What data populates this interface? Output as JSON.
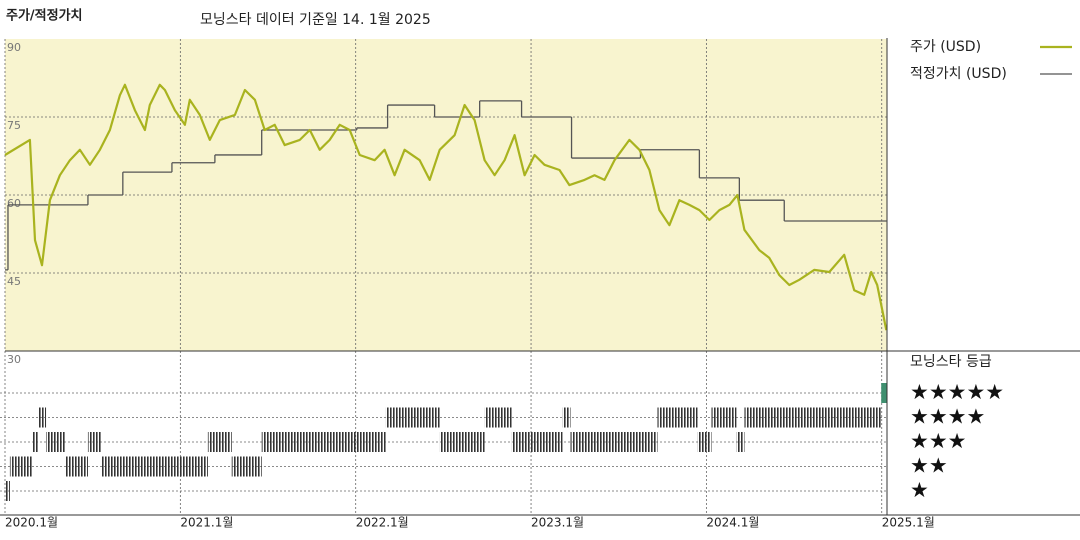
{
  "chart_data": {
    "type": "line",
    "title": "주가/적정가치",
    "subtitle": "모닝스타 데이터 기준일 14. 1월 2025",
    "xlim": [
      2020,
      2025.03
    ],
    "xticks": [
      {
        "value": 2020,
        "label": "2020.1월"
      },
      {
        "value": 2021,
        "label": "2021.1월"
      },
      {
        "value": 2022,
        "label": "2022.1월"
      },
      {
        "value": 2023,
        "label": "2023.1월"
      },
      {
        "value": 2024,
        "label": "2024.1월"
      },
      {
        "value": 2025,
        "label": "2025.1월"
      }
    ],
    "ylim": [
      30,
      90
    ],
    "yticks": [
      30,
      45,
      60,
      75,
      90
    ],
    "grid": true,
    "background": "#f8f4cf",
    "series": [
      {
        "name": "주가 (USD)",
        "color": "#a9b31f",
        "style": "line",
        "x": [
          2020.0,
          2020.142,
          2020.171,
          2020.211,
          2020.256,
          2020.313,
          2020.37,
          2020.427,
          2020.484,
          2020.541,
          2020.598,
          2020.655,
          2020.684,
          2020.741,
          2020.798,
          2020.826,
          2020.883,
          2020.912,
          2020.969,
          2021.026,
          2021.054,
          2021.111,
          2021.168,
          2021.225,
          2021.311,
          2021.368,
          2021.425,
          2021.481,
          2021.538,
          2021.595,
          2021.681,
          2021.738,
          2021.795,
          2021.852,
          2021.909,
          2021.966,
          2022.023,
          2022.108,
          2022.165,
          2022.222,
          2022.279,
          2022.365,
          2022.422,
          2022.479,
          2022.564,
          2022.621,
          2022.678,
          2022.735,
          2022.792,
          2022.849,
          2022.906,
          2022.963,
          2023.02,
          2023.077,
          2023.162,
          2023.219,
          2023.305,
          2023.362,
          2023.419,
          2023.476,
          2023.561,
          2023.618,
          2023.675,
          2023.732,
          2023.789,
          2023.846,
          2023.903,
          2023.96,
          2024.017,
          2024.074,
          2024.131,
          2024.177,
          2024.217,
          2024.302,
          2024.359,
          2024.416,
          2024.473,
          2024.53,
          2024.615,
          2024.701,
          2024.786,
          2024.843,
          2024.9,
          2024.94,
          2024.974,
          2025.009,
          2025.026
        ],
        "values": [
          67.7,
          70.6,
          51.3,
          46.5,
          59.0,
          63.8,
          66.7,
          68.7,
          65.8,
          68.7,
          72.5,
          79.2,
          81.2,
          76.3,
          72.5,
          77.3,
          81.2,
          80.2,
          76.3,
          73.5,
          78.3,
          75.4,
          70.6,
          74.4,
          75.4,
          80.2,
          78.3,
          72.5,
          73.5,
          69.6,
          70.6,
          72.5,
          68.7,
          70.6,
          73.5,
          72.5,
          67.7,
          66.7,
          68.7,
          63.8,
          68.7,
          66.7,
          62.9,
          68.7,
          71.5,
          77.3,
          74.4,
          66.7,
          63.8,
          66.7,
          71.5,
          63.8,
          67.7,
          65.8,
          64.8,
          61.9,
          62.9,
          63.8,
          62.9,
          66.7,
          70.6,
          68.7,
          64.8,
          57.1,
          54.2,
          59.0,
          58.1,
          57.1,
          55.2,
          57.1,
          58.1,
          60.0,
          53.3,
          49.4,
          47.9,
          44.6,
          42.7,
          43.7,
          45.6,
          45.2,
          48.5,
          41.7,
          40.8,
          45.2,
          42.7,
          36.9,
          34.0
        ]
      },
      {
        "name": "적정가치 (USD)",
        "color": "#555555",
        "style": "step",
        "x": [
          2020.0,
          2020.017,
          2020.473,
          2020.672,
          2020.952,
          2021.197,
          2021.464,
          2022.006,
          2022.182,
          2022.45,
          2022.707,
          2022.946,
          2023.231,
          2023.624,
          2023.96,
          2024.188,
          2024.444,
          2025.026
        ],
        "values": [
          45.6,
          58.1,
          60.0,
          64.4,
          66.2,
          67.7,
          72.5,
          72.9,
          77.3,
          75.0,
          78.1,
          75.0,
          67.1,
          68.7,
          63.3,
          59.0,
          55.0,
          55.0
        ]
      }
    ],
    "rating_title": "모닝스타 등급",
    "rating_labels": [
      "★★★★★",
      "★★★★",
      "★★★",
      "★★",
      "★"
    ],
    "rating_levels": [
      5,
      4,
      3,
      2,
      1
    ],
    "ratings": {
      "start": [
        2020.0,
        2020.028,
        2020.154,
        2020.188,
        2020.234,
        2020.342,
        2020.473,
        2020.553,
        2021.157,
        2021.293,
        2021.464,
        2022.171,
        2022.479,
        2022.735,
        2022.889,
        2023.179,
        2023.225,
        2023.721,
        2023.949,
        2024.029,
        2024.171,
        2024.217,
        2024.997
      ],
      "stars": [
        1,
        2,
        3,
        4,
        3,
        2,
        3,
        2,
        3,
        2,
        3,
        4,
        3,
        4,
        3,
        4,
        3,
        4,
        3,
        4,
        3,
        4,
        5
      ],
      "end": 2025.03,
      "color": "#333333",
      "top_color": "#3f8f6f"
    }
  }
}
